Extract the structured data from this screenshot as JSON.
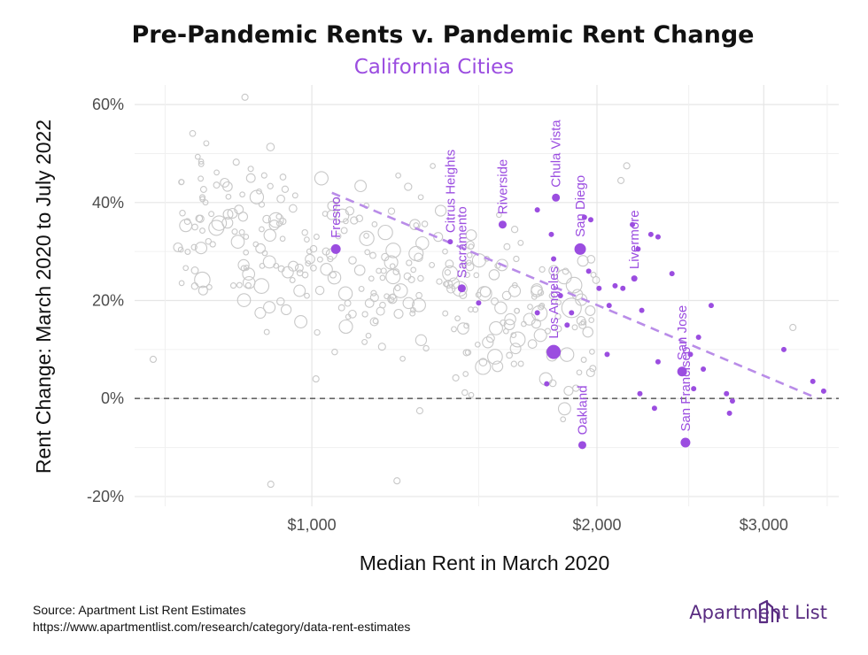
{
  "colors": {
    "accent": "#9b4de0",
    "bg_point": "#c8c8c8",
    "grid": "#e6e6e6",
    "zero_line": "#666666",
    "trend": "#b98ce8",
    "brand": "#5a2d82"
  },
  "source": {
    "line1": "Source: Apartment List Rent Estimates",
    "line2": "https://www.apartmentlist.com/research/category/data-rent-estimates"
  },
  "brand": {
    "name": "Apartment List",
    "icon": "apartment-list-logo-icon"
  },
  "chart_data": {
    "type": "scatter",
    "title": "Pre-Pandemic Rents v. Pandemic Rent Change",
    "subtitle": "California Cities",
    "xlabel": "Median Rent in March 2020",
    "ylabel": "Rent Change: March 2020 to July 2022",
    "x_scale": "log",
    "xlim": [
      650,
      3600
    ],
    "ylim": [
      -22,
      64
    ],
    "x_ticks": [
      1000,
      2000,
      3000
    ],
    "x_tick_labels": [
      "$1,000",
      "$2,000",
      "$3,000"
    ],
    "y_ticks": [
      -20,
      0,
      20,
      40,
      60
    ],
    "y_tick_labels": [
      "-20%",
      "0%",
      "20%",
      "40%",
      "60%"
    ],
    "reference_line_y": 0,
    "grid": true,
    "trendline": {
      "x": [
        1050,
        3420
      ],
      "y": [
        42,
        0
      ]
    },
    "highlighted_cities": [
      {
        "name": "Fresno",
        "x": 1060,
        "y": 30.5,
        "size": 5.5
      },
      {
        "name": "Citrus Heights",
        "x": 1400,
        "y": 32,
        "size": 3
      },
      {
        "name": "Sacramento",
        "x": 1440,
        "y": 22.5,
        "size": 4.5
      },
      {
        "name": "Riverside",
        "x": 1590,
        "y": 35.5,
        "size": 4.5
      },
      {
        "name": "Chula Vista",
        "x": 1810,
        "y": 41,
        "size": 4.5
      },
      {
        "name": "San Diego",
        "x": 1920,
        "y": 30.5,
        "size": 6.5
      },
      {
        "name": "Los Angeles",
        "x": 1800,
        "y": 9.5,
        "size": 8
      },
      {
        "name": "Oakland",
        "x": 1930,
        "y": -9.5,
        "size": 4.5
      },
      {
        "name": "Livermore",
        "x": 2190,
        "y": 24.5,
        "size": 3.5
      },
      {
        "name": "San Jose",
        "x": 2460,
        "y": 5.5,
        "size": 5.5
      },
      {
        "name": "San Francisco",
        "x": 2480,
        "y": -9,
        "size": 5.5
      }
    ],
    "other_purple": [
      [
        1500,
        19.5
      ],
      [
        1730,
        38.5
      ],
      [
        1790,
        33.5
      ],
      [
        1730,
        17.5
      ],
      [
        1770,
        3
      ],
      [
        1800,
        28.5
      ],
      [
        1830,
        21
      ],
      [
        1860,
        15
      ],
      [
        1880,
        17.5
      ],
      [
        1960,
        26
      ],
      [
        1940,
        37
      ],
      [
        1970,
        36.5
      ],
      [
        2010,
        22.5
      ],
      [
        2050,
        9
      ],
      [
        2090,
        23
      ],
      [
        2130,
        22.5
      ],
      [
        2180,
        35.5
      ],
      [
        2210,
        30.5
      ],
      [
        2230,
        18
      ],
      [
        2280,
        33.5
      ],
      [
        2320,
        33
      ],
      [
        2400,
        25.5
      ],
      [
        2510,
        9
      ],
      [
        2530,
        2
      ],
      [
        2560,
        12.5
      ],
      [
        2590,
        6
      ],
      [
        2640,
        19
      ],
      [
        2320,
        7.5
      ],
      [
        2300,
        -2
      ],
      [
        2220,
        1
      ],
      [
        2740,
        1
      ],
      [
        2760,
        -3
      ],
      [
        2780,
        -0.5
      ],
      [
        3150,
        10
      ],
      [
        3380,
        3.5
      ],
      [
        3470,
        1.5
      ],
      [
        2060,
        19
      ]
    ]
  }
}
